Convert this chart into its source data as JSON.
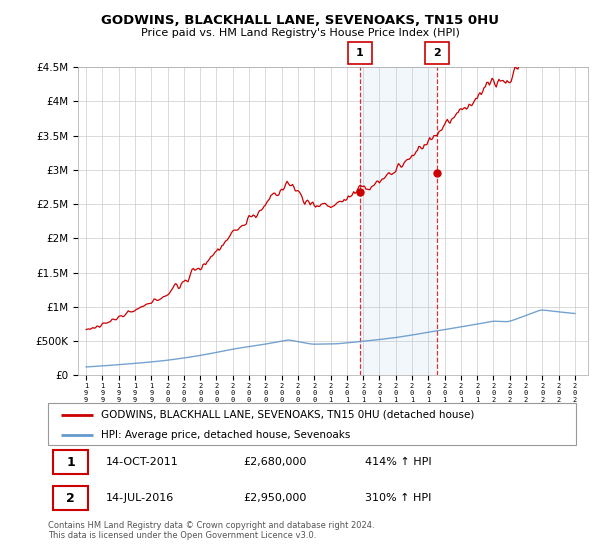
{
  "title": "GODWINS, BLACKHALL LANE, SEVENOAKS, TN15 0HU",
  "subtitle": "Price paid vs. HM Land Registry's House Price Index (HPI)",
  "ylim": [
    0,
    4500000
  ],
  "yticks": [
    0,
    500000,
    1000000,
    1500000,
    2000000,
    2500000,
    3000000,
    3500000,
    4000000,
    4500000
  ],
  "ytick_labels": [
    "£0",
    "£500K",
    "£1M",
    "£1.5M",
    "£2M",
    "£2.5M",
    "£3M",
    "£3.5M",
    "£4M",
    "£4.5M"
  ],
  "legend_house_label": "GODWINS, BLACKHALL LANE, SEVENOAKS, TN15 0HU (detached house)",
  "legend_hpi_label": "HPI: Average price, detached house, Sevenoaks",
  "transaction1_label": "1",
  "transaction1_date": "14-OCT-2011",
  "transaction1_price": "£2,680,000",
  "transaction1_hpi": "414% ↑ HPI",
  "transaction2_label": "2",
  "transaction2_date": "14-JUL-2016",
  "transaction2_price": "£2,950,000",
  "transaction2_hpi": "310% ↑ HPI",
  "footer": "Contains HM Land Registry data © Crown copyright and database right 2024.\nThis data is licensed under the Open Government Licence v3.0.",
  "house_color": "#cc0000",
  "hpi_color": "#6699cc",
  "transaction1_x": 2011.79,
  "transaction2_x": 2016.54,
  "transaction1_y": 2680000,
  "transaction2_y": 2950000,
  "xlim_start": 1994.5,
  "xlim_end": 2025.8
}
